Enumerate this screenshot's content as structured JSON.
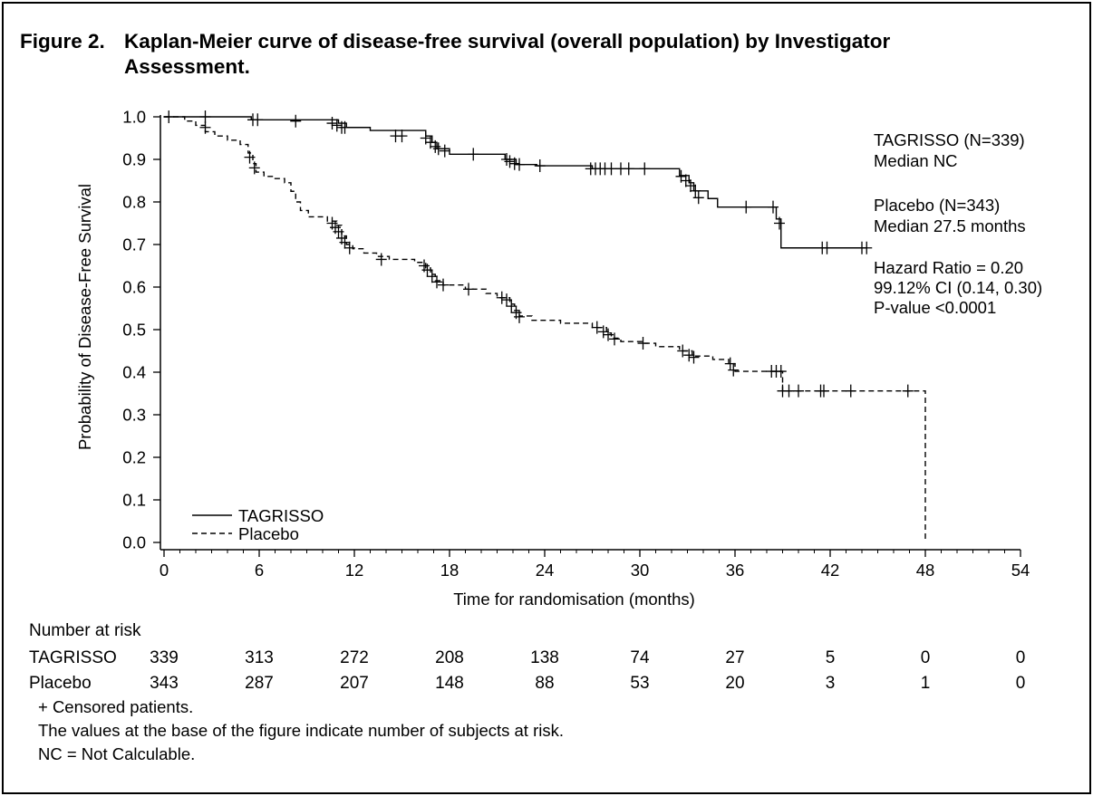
{
  "figure": {
    "label": "Figure 2.",
    "title": "Kaplan-Meier curve of disease-free survival (overall population) by Investigator Assessment."
  },
  "chart_data": {
    "type": "line",
    "subtype": "kaplan-meier",
    "xlabel": "Time for randomisation (months)",
    "ylabel": "Probability of Disease-Free Survival",
    "xlim": [
      0,
      54
    ],
    "ylim": [
      0,
      1.0
    ],
    "xticks": [
      "0",
      "6",
      "12",
      "18",
      "24",
      "30",
      "36",
      "42",
      "48",
      "54"
    ],
    "yticks": [
      "0.0",
      "0.1",
      "0.2",
      "0.3",
      "0.4",
      "0.5",
      "0.6",
      "0.7",
      "0.8",
      "0.9",
      "1.0"
    ],
    "legend": {
      "position": "bottom-left",
      "entries": [
        "TAGRISSO",
        "Placebo"
      ]
    },
    "annotations": {
      "tagrisso_n": "TAGRISSO (N=339)",
      "tagrisso_median": "Median NC",
      "placebo_n": "Placebo (N=343)",
      "placebo_median": "Median 27.5 months",
      "hr": "Hazard Ratio = 0.20",
      "ci": "99.12% CI (0.14, 0.30)",
      "p": "P-value <0.0001"
    },
    "series": [
      {
        "name": "TAGRISSO",
        "style": "solid",
        "steps": [
          [
            0,
            1.0
          ],
          [
            5.5,
            0.993
          ],
          [
            11,
            0.985
          ],
          [
            11.5,
            0.975
          ],
          [
            13,
            0.968
          ],
          [
            16.5,
            0.955
          ],
          [
            16.9,
            0.94
          ],
          [
            17.2,
            0.925
          ],
          [
            18,
            0.912
          ],
          [
            21.5,
            0.9
          ],
          [
            22.2,
            0.888
          ],
          [
            23.5,
            0.885
          ],
          [
            27,
            0.878
          ],
          [
            32.5,
            0.862
          ],
          [
            33.1,
            0.845
          ],
          [
            33.4,
            0.826
          ],
          [
            34.3,
            0.808
          ],
          [
            34.9,
            0.788
          ],
          [
            38.6,
            0.76
          ],
          [
            38.9,
            0.692
          ],
          [
            44.3,
            0.692
          ]
        ],
        "censored": [
          [
            0.3,
            1.0
          ],
          [
            2.6,
            1.0
          ],
          [
            5.6,
            0.993
          ],
          [
            5.9,
            0.993
          ],
          [
            8.3,
            0.99
          ],
          [
            10.6,
            0.985
          ],
          [
            10.9,
            0.98
          ],
          [
            11.2,
            0.975
          ],
          [
            11.4,
            0.975
          ],
          [
            14.6,
            0.955
          ],
          [
            15.0,
            0.955
          ],
          [
            16.5,
            0.95
          ],
          [
            16.8,
            0.94
          ],
          [
            17.1,
            0.93
          ],
          [
            17.3,
            0.925
          ],
          [
            17.7,
            0.92
          ],
          [
            19.5,
            0.912
          ],
          [
            21.6,
            0.9
          ],
          [
            21.8,
            0.895
          ],
          [
            22.1,
            0.89
          ],
          [
            22.4,
            0.888
          ],
          [
            23.7,
            0.885
          ],
          [
            26.9,
            0.878
          ],
          [
            27.2,
            0.878
          ],
          [
            27.5,
            0.878
          ],
          [
            27.8,
            0.878
          ],
          [
            28.2,
            0.878
          ],
          [
            28.8,
            0.878
          ],
          [
            29.3,
            0.878
          ],
          [
            30.3,
            0.878
          ],
          [
            32.6,
            0.86
          ],
          [
            32.9,
            0.85
          ],
          [
            33.2,
            0.838
          ],
          [
            33.5,
            0.826
          ],
          [
            33.7,
            0.81
          ],
          [
            36.7,
            0.788
          ],
          [
            38.4,
            0.788
          ],
          [
            38.8,
            0.75
          ],
          [
            41.5,
            0.692
          ],
          [
            41.8,
            0.692
          ],
          [
            44.0,
            0.692
          ],
          [
            44.3,
            0.692
          ]
        ]
      },
      {
        "name": "Placebo",
        "style": "dashed",
        "steps": [
          [
            0,
            1.0
          ],
          [
            1.3,
            0.99
          ],
          [
            2,
            0.98
          ],
          [
            2.6,
            0.965
          ],
          [
            3.2,
            0.955
          ],
          [
            4,
            0.945
          ],
          [
            4.8,
            0.935
          ],
          [
            5.3,
            0.915
          ],
          [
            5.6,
            0.89
          ],
          [
            5.8,
            0.87
          ],
          [
            6.3,
            0.86
          ],
          [
            7,
            0.855
          ],
          [
            7.6,
            0.845
          ],
          [
            8.0,
            0.825
          ],
          [
            8.3,
            0.8
          ],
          [
            8.6,
            0.78
          ],
          [
            9.1,
            0.765
          ],
          [
            10.3,
            0.755
          ],
          [
            10.9,
            0.745
          ],
          [
            11.2,
            0.72
          ],
          [
            11.5,
            0.7
          ],
          [
            11.9,
            0.69
          ],
          [
            12.6,
            0.68
          ],
          [
            13.4,
            0.672
          ],
          [
            14.2,
            0.665
          ],
          [
            15.8,
            0.658
          ],
          [
            16.5,
            0.645
          ],
          [
            16.8,
            0.63
          ],
          [
            17.1,
            0.615
          ],
          [
            17.6,
            0.605
          ],
          [
            19.0,
            0.595
          ],
          [
            20.3,
            0.585
          ],
          [
            21.0,
            0.575
          ],
          [
            21.8,
            0.56
          ],
          [
            22.1,
            0.545
          ],
          [
            22.4,
            0.532
          ],
          [
            23.2,
            0.522
          ],
          [
            25.0,
            0.515
          ],
          [
            27.0,
            0.505
          ],
          [
            27.9,
            0.492
          ],
          [
            28.2,
            0.48
          ],
          [
            28.8,
            0.472
          ],
          [
            30.2,
            0.468
          ],
          [
            31.0,
            0.46
          ],
          [
            32.5,
            0.45
          ],
          [
            33.3,
            0.438
          ],
          [
            34.6,
            0.43
          ],
          [
            35.6,
            0.42
          ],
          [
            36.0,
            0.402
          ],
          [
            38.8,
            0.402
          ],
          [
            39.0,
            0.356
          ],
          [
            48.0,
            0.356
          ],
          [
            48.0,
            0.0
          ]
        ],
        "censored": [
          [
            2.6,
            0.975
          ],
          [
            5.4,
            0.905
          ],
          [
            5.7,
            0.88
          ],
          [
            10.6,
            0.75
          ],
          [
            10.8,
            0.74
          ],
          [
            11.0,
            0.73
          ],
          [
            11.2,
            0.715
          ],
          [
            11.4,
            0.705
          ],
          [
            11.7,
            0.692
          ],
          [
            13.7,
            0.665
          ],
          [
            16.4,
            0.65
          ],
          [
            16.6,
            0.64
          ],
          [
            16.9,
            0.625
          ],
          [
            17.2,
            0.612
          ],
          [
            17.6,
            0.605
          ],
          [
            19.2,
            0.595
          ],
          [
            21.3,
            0.575
          ],
          [
            21.6,
            0.57
          ],
          [
            21.9,
            0.555
          ],
          [
            22.2,
            0.54
          ],
          [
            22.4,
            0.53
          ],
          [
            27.3,
            0.505
          ],
          [
            27.7,
            0.495
          ],
          [
            28.0,
            0.488
          ],
          [
            28.4,
            0.478
          ],
          [
            30.2,
            0.468
          ],
          [
            32.7,
            0.45
          ],
          [
            33.1,
            0.44
          ],
          [
            33.4,
            0.435
          ],
          [
            35.7,
            0.42
          ],
          [
            35.9,
            0.405
          ],
          [
            38.3,
            0.402
          ],
          [
            38.6,
            0.402
          ],
          [
            38.9,
            0.402
          ],
          [
            39.0,
            0.356
          ],
          [
            39.4,
            0.356
          ],
          [
            40.0,
            0.356
          ],
          [
            41.4,
            0.356
          ],
          [
            41.6,
            0.356
          ],
          [
            43.3,
            0.356
          ],
          [
            46.9,
            0.356
          ]
        ]
      }
    ]
  },
  "risk_table": {
    "header": "Number at risk",
    "times": [
      0,
      6,
      12,
      18,
      24,
      30,
      36,
      42,
      48,
      54
    ],
    "rows": [
      {
        "label": "TAGRISSO",
        "values": [
          "339",
          "313",
          "272",
          "208",
          "138",
          "74",
          "27",
          "5",
          "0",
          "0"
        ]
      },
      {
        "label": "Placebo",
        "values": [
          "343",
          "287",
          "207",
          "148",
          "88",
          "53",
          "20",
          "3",
          "1",
          "0"
        ]
      }
    ]
  },
  "footnotes": [
    "+ Censored patients.",
    "The values at the base of the figure indicate number of subjects at risk.",
    "NC = Not Calculable."
  ]
}
